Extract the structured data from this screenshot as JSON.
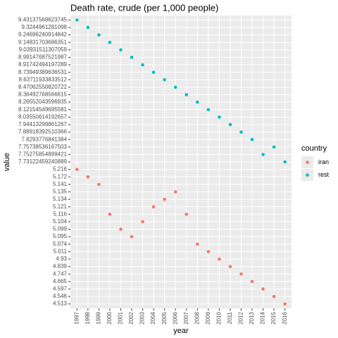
{
  "chart_data": {
    "type": "scatter",
    "title": "Death rate, crude (per 1,000 people)",
    "x_label": "year",
    "y_label": "value",
    "legend_title": "country",
    "legend_position": "right",
    "categories": [
      "1997",
      "1998",
      "1999",
      "2000",
      "2001",
      "2002",
      "2003",
      "2004",
      "2005",
      "2006",
      "2007",
      "2008",
      "2009",
      "2010",
      "2011",
      "2012",
      "2013",
      "2014",
      "2015",
      "2016"
    ],
    "yticks": [
      4.513,
      4.546,
      4.597,
      4.665,
      4.747,
      4.839,
      4.93,
      5.011,
      5.074,
      5.095,
      5.099,
      5.104,
      5.116,
      5.121,
      5.134,
      5.135,
      5.141,
      5.172,
      5.216,
      7.73122459240889,
      7.75275854899421,
      7.75738536167503,
      7.8293776841384,
      7.88918392510366,
      7.94413299861267,
      8.03550614192657,
      8.12154549695581,
      8.26552043596935,
      8.36492768566615,
      8.47062550820722,
      8.63711933833512,
      8.73949389636531,
      8.91742494197289,
      8.99147687521987,
      9.03931511307059,
      9.14831703686351,
      9.24696240914842,
      9.3244961281098,
      9.43137568623745
    ],
    "grid": true,
    "series": [
      {
        "name": "iran",
        "color": "#F8766D",
        "values": [
          5.216,
          5.172,
          5.141,
          5.116,
          5.099,
          5.095,
          5.104,
          5.121,
          5.134,
          5.135,
          5.116,
          5.074,
          5.011,
          4.93,
          4.839,
          4.747,
          4.665,
          4.597,
          4.546,
          4.513
        ]
      },
      {
        "name": "rest",
        "color": "#00BFC4",
        "values": [
          9.43137568623745,
          9.3244961281098,
          9.24696240914842,
          9.14831703686351,
          9.03931511307059,
          8.99147687521987,
          8.91742494197289,
          8.73949389636531,
          8.63711933833512,
          8.47062550820722,
          8.36492768566615,
          8.26552043596935,
          8.12154549695581,
          8.03550614192657,
          7.94413299861267,
          7.88918392510366,
          7.8293776841384,
          7.75275854899421,
          7.75738536167503,
          7.73122459240889
        ]
      }
    ]
  }
}
